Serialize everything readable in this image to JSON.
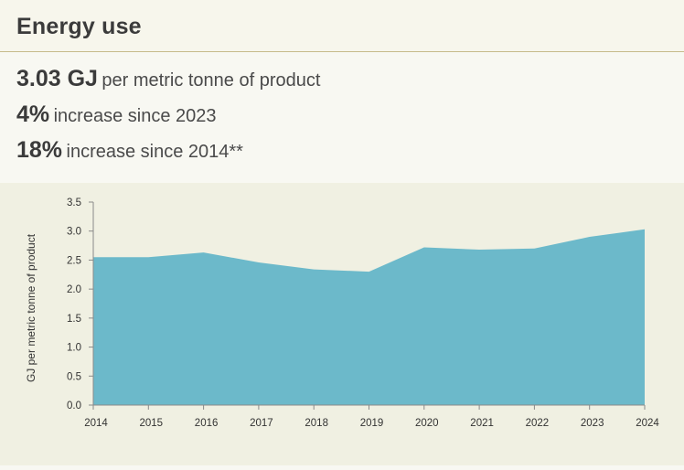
{
  "header": {
    "title": "Energy use"
  },
  "stats": [
    {
      "value": "3.03 GJ",
      "text": "per metric tonne of product"
    },
    {
      "value": "4%",
      "text": "increase since 2023"
    },
    {
      "value": "18%",
      "text": "increase since 2014**"
    }
  ],
  "colors": {
    "area_fill": "#6cb9ca",
    "axis": "#8a8a8a"
  },
  "chart_data": {
    "type": "area",
    "title": "",
    "xlabel": "",
    "ylabel": "GJ per metric tonne of product",
    "x": [
      "2014",
      "2015",
      "2016",
      "2017",
      "2018",
      "2019",
      "2020",
      "2021",
      "2022",
      "2023",
      "2024"
    ],
    "values": [
      2.55,
      2.55,
      2.63,
      2.46,
      2.34,
      2.3,
      2.72,
      2.68,
      2.7,
      2.9,
      3.03
    ],
    "ylim": [
      0,
      3.5
    ],
    "yticks": [
      "0.0",
      "0.5",
      "1.0",
      "1.5",
      "2.0",
      "2.5",
      "3.0",
      "3.5"
    ],
    "grid": false,
    "legend": "none"
  }
}
